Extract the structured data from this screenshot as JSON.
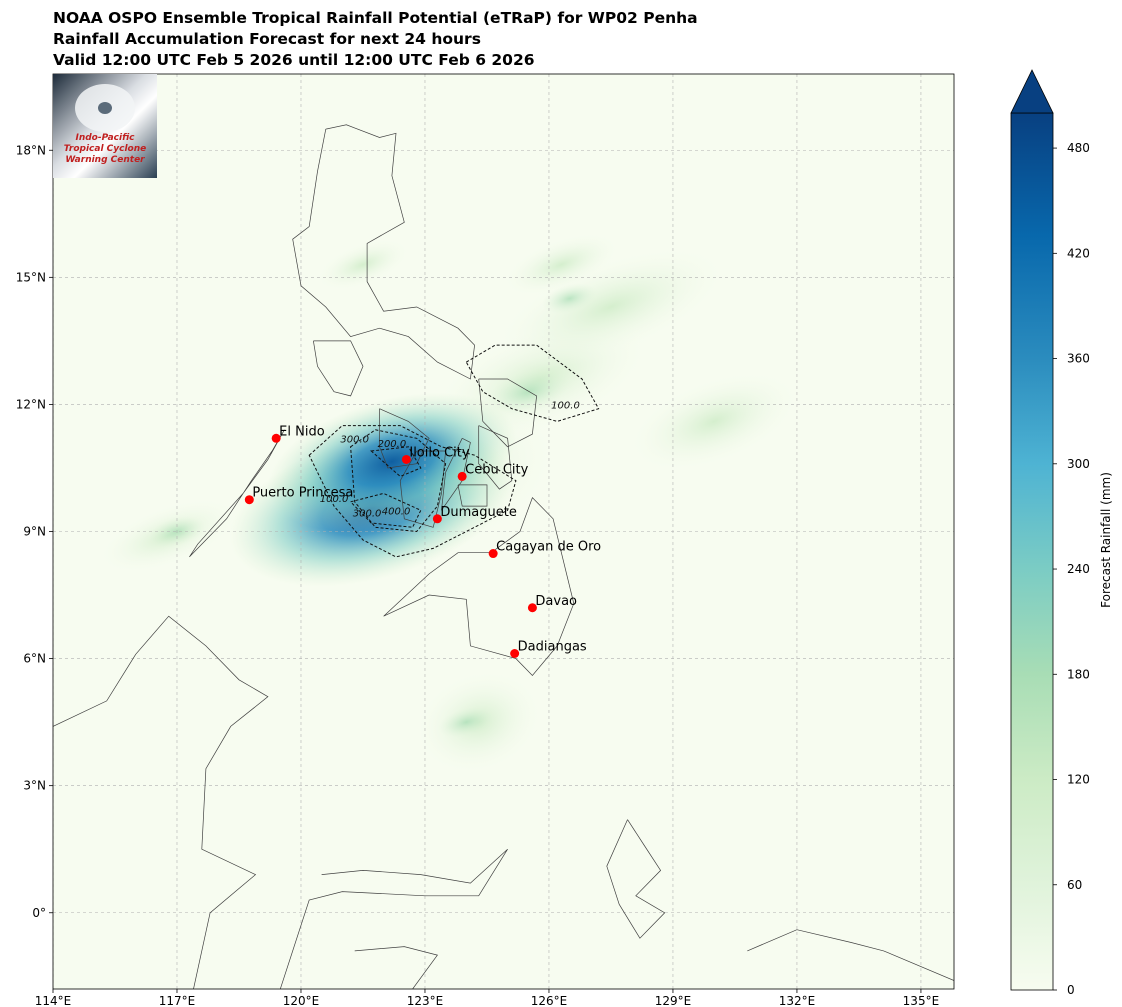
{
  "titles": [
    "NOAA OSPO Ensemble Tropical Rainfall Potential (eTRaP) for WP02 Penha",
    "Rainfall Accumulation Forecast for next 24 hours",
    "Valid 12:00 UTC Feb 5 2026 until 12:00 UTC Feb 6 2026"
  ],
  "logo": {
    "text_lines": [
      "Indo-Pacific",
      "Tropical Cyclone",
      "Warning Center"
    ]
  },
  "colors": {
    "land_outline": "#404040",
    "grid": "#b0b0b0",
    "city_marker": "#ff0000",
    "colormap_low": "#f7fcf0",
    "colormap_high": "#084081"
  },
  "chart_data": {
    "type": "heatmap",
    "projection": "Plate Carree",
    "xlim": [
      114,
      135.8
    ],
    "ylim": [
      -1.8,
      19.8
    ],
    "x_ticks": [
      {
        "value": 114,
        "label": "114°E"
      },
      {
        "value": 117,
        "label": "117°E"
      },
      {
        "value": 120,
        "label": "120°E"
      },
      {
        "value": 123,
        "label": "123°E"
      },
      {
        "value": 126,
        "label": "126°E"
      },
      {
        "value": 129,
        "label": "129°E"
      },
      {
        "value": 132,
        "label": "132°E"
      },
      {
        "value": 135,
        "label": "135°E"
      }
    ],
    "y_ticks": [
      {
        "value": 0,
        "label": "0°"
      },
      {
        "value": 3,
        "label": "3°N"
      },
      {
        "value": 6,
        "label": "6°N"
      },
      {
        "value": 9,
        "label": "9°N"
      },
      {
        "value": 12,
        "label": "12°N"
      },
      {
        "value": 15,
        "label": "15°N"
      },
      {
        "value": 18,
        "label": "18°N"
      }
    ],
    "grid": true,
    "cities": [
      {
        "name": "El Nido",
        "lon": 119.4,
        "lat": 11.2
      },
      {
        "name": "Puerto Princesa",
        "lon": 118.75,
        "lat": 9.75
      },
      {
        "name": "Iloilo City",
        "lon": 122.55,
        "lat": 10.7
      },
      {
        "name": "Cebu City",
        "lon": 123.9,
        "lat": 10.3
      },
      {
        "name": "Dumaguete",
        "lon": 123.3,
        "lat": 9.3
      },
      {
        "name": "Cagayan de Oro",
        "lon": 124.65,
        "lat": 8.48
      },
      {
        "name": "Davao",
        "lon": 125.6,
        "lat": 7.2
      },
      {
        "name": "Dadiangas",
        "lon": 125.17,
        "lat": 6.12
      }
    ],
    "contour_labels": [
      {
        "text": "100.0",
        "lon": 126.4,
        "lat": 11.9
      },
      {
        "text": "100.0",
        "lon": 120.8,
        "lat": 9.7
      },
      {
        "text": "200.0",
        "lon": 122.2,
        "lat": 11.0
      },
      {
        "text": "300.0",
        "lon": 121.3,
        "lat": 11.1
      },
      {
        "text": "300.0",
        "lon": 121.6,
        "lat": 9.35
      },
      {
        "text": "400.0",
        "lon": 122.3,
        "lat": 9.4
      }
    ],
    "rain_cores": [
      {
        "lon": 121.7,
        "lat": 9.55,
        "amount": 490
      },
      {
        "lon": 122.2,
        "lat": 10.65,
        "amount": 430
      },
      {
        "lon": 125.5,
        "lat": 12.3,
        "amount": 140
      },
      {
        "lon": 126.5,
        "lat": 14.5,
        "amount": 50
      },
      {
        "lon": 124.0,
        "lat": 4.5,
        "amount": 30
      },
      {
        "lon": 117.0,
        "lat": 9.0,
        "amount": 30
      }
    ],
    "colorbar": {
      "label": "Forecast Rainfall (mm)",
      "min": 0,
      "max": 500,
      "extend": "max",
      "ticks": [
        {
          "value": 0,
          "label": "0"
        },
        {
          "value": 60,
          "label": "60"
        },
        {
          "value": 120,
          "label": "120"
        },
        {
          "value": 180,
          "label": "180"
        },
        {
          "value": 240,
          "label": "240"
        },
        {
          "value": 300,
          "label": "300"
        },
        {
          "value": 360,
          "label": "360"
        },
        {
          "value": 420,
          "label": "420"
        },
        {
          "value": 480,
          "label": "480"
        }
      ]
    }
  }
}
